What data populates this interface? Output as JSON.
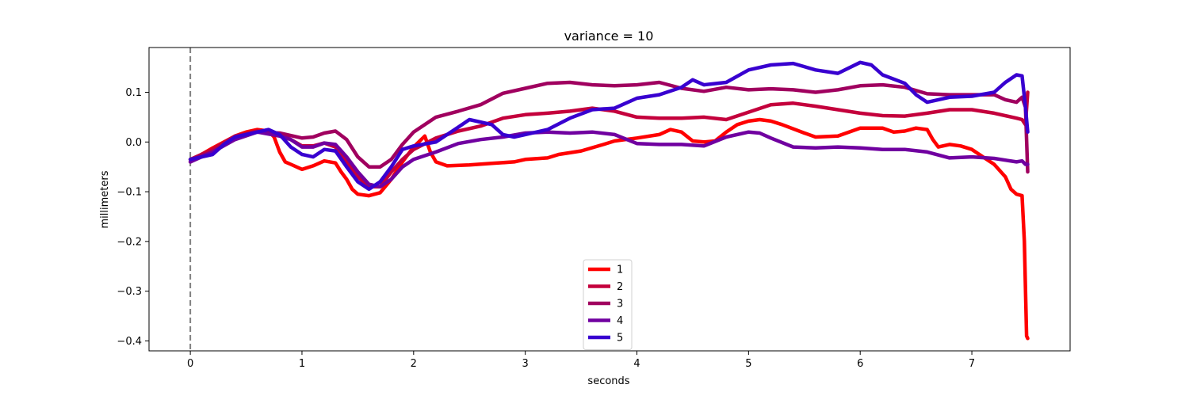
{
  "chart_data": {
    "type": "line",
    "title": "variance = 10",
    "xlabel": "seconds",
    "ylabel": "millimeters",
    "xlim": [
      -0.37,
      7.88
    ],
    "ylim": [
      -0.42,
      0.19
    ],
    "xticks": [
      0,
      1,
      2,
      3,
      4,
      5,
      6,
      7
    ],
    "xtick_labels": [
      "0",
      "1",
      "2",
      "3",
      "4",
      "5",
      "6",
      "7"
    ],
    "yticks": [
      -0.4,
      -0.3,
      -0.2,
      -0.1,
      0.0,
      0.1
    ],
    "ytick_labels": [
      "−0.4",
      "−0.3",
      "−0.2",
      "−0.1",
      "0.0",
      "0.1"
    ],
    "vline": {
      "x": 0,
      "color": "#808080",
      "style": "dashed"
    },
    "grid": false,
    "legend_position": "lower center",
    "series": [
      {
        "name": "1",
        "color": "#ff0000",
        "points": [
          [
            0,
            -0.04
          ],
          [
            0.1,
            -0.025
          ],
          [
            0.2,
            -0.012
          ],
          [
            0.3,
            0.0
          ],
          [
            0.4,
            0.012
          ],
          [
            0.5,
            0.02
          ],
          [
            0.6,
            0.025
          ],
          [
            0.7,
            0.022
          ],
          [
            0.75,
            0.01
          ],
          [
            0.8,
            -0.02
          ],
          [
            0.85,
            -0.04
          ],
          [
            0.9,
            -0.045
          ],
          [
            1.0,
            -0.055
          ],
          [
            1.1,
            -0.048
          ],
          [
            1.2,
            -0.038
          ],
          [
            1.3,
            -0.042
          ],
          [
            1.35,
            -0.06
          ],
          [
            1.4,
            -0.075
          ],
          [
            1.45,
            -0.095
          ],
          [
            1.5,
            -0.105
          ],
          [
            1.6,
            -0.108
          ],
          [
            1.7,
            -0.102
          ],
          [
            1.8,
            -0.075
          ],
          [
            1.9,
            -0.04
          ],
          [
            2.0,
            -0.01
          ],
          [
            2.1,
            0.012
          ],
          [
            2.15,
            -0.02
          ],
          [
            2.2,
            -0.04
          ],
          [
            2.3,
            -0.048
          ],
          [
            2.5,
            -0.046
          ],
          [
            2.7,
            -0.043
          ],
          [
            2.9,
            -0.04
          ],
          [
            3.0,
            -0.035
          ],
          [
            3.2,
            -0.032
          ],
          [
            3.3,
            -0.025
          ],
          [
            3.5,
            -0.018
          ],
          [
            3.7,
            -0.005
          ],
          [
            3.8,
            0.002
          ],
          [
            4.0,
            0.008
          ],
          [
            4.2,
            0.015
          ],
          [
            4.3,
            0.025
          ],
          [
            4.4,
            0.02
          ],
          [
            4.5,
            0.002
          ],
          [
            4.6,
            0.0
          ],
          [
            4.7,
            0.002
          ],
          [
            4.8,
            0.02
          ],
          [
            4.9,
            0.035
          ],
          [
            5.0,
            0.042
          ],
          [
            5.1,
            0.045
          ],
          [
            5.2,
            0.042
          ],
          [
            5.3,
            0.035
          ],
          [
            5.5,
            0.018
          ],
          [
            5.6,
            0.01
          ],
          [
            5.8,
            0.012
          ],
          [
            5.9,
            0.02
          ],
          [
            6.0,
            0.028
          ],
          [
            6.2,
            0.028
          ],
          [
            6.3,
            0.02
          ],
          [
            6.4,
            0.022
          ],
          [
            6.5,
            0.028
          ],
          [
            6.6,
            0.025
          ],
          [
            6.65,
            0.005
          ],
          [
            6.7,
            -0.01
          ],
          [
            6.8,
            -0.005
          ],
          [
            6.9,
            -0.008
          ],
          [
            7.0,
            -0.015
          ],
          [
            7.1,
            -0.03
          ],
          [
            7.2,
            -0.045
          ],
          [
            7.3,
            -0.07
          ],
          [
            7.35,
            -0.095
          ],
          [
            7.4,
            -0.105
          ],
          [
            7.45,
            -0.108
          ],
          [
            7.47,
            -0.2
          ],
          [
            7.49,
            -0.39
          ],
          [
            7.5,
            -0.395
          ]
        ]
      },
      {
        "name": "2",
        "color": "#c4003c",
        "points": [
          [
            0,
            -0.035
          ],
          [
            0.2,
            -0.015
          ],
          [
            0.4,
            0.012
          ],
          [
            0.6,
            0.022
          ],
          [
            0.8,
            0.015
          ],
          [
            0.9,
            0.005
          ],
          [
            1.0,
            -0.008
          ],
          [
            1.1,
            -0.008
          ],
          [
            1.2,
            -0.002
          ],
          [
            1.3,
            -0.01
          ],
          [
            1.4,
            -0.04
          ],
          [
            1.5,
            -0.07
          ],
          [
            1.6,
            -0.09
          ],
          [
            1.7,
            -0.09
          ],
          [
            1.8,
            -0.06
          ],
          [
            1.9,
            -0.035
          ],
          [
            2.0,
            -0.015
          ],
          [
            2.2,
            0.008
          ],
          [
            2.4,
            0.022
          ],
          [
            2.6,
            0.032
          ],
          [
            2.8,
            0.048
          ],
          [
            3.0,
            0.055
          ],
          [
            3.2,
            0.058
          ],
          [
            3.4,
            0.062
          ],
          [
            3.6,
            0.068
          ],
          [
            3.8,
            0.062
          ],
          [
            4.0,
            0.05
          ],
          [
            4.2,
            0.048
          ],
          [
            4.4,
            0.048
          ],
          [
            4.6,
            0.05
          ],
          [
            4.8,
            0.045
          ],
          [
            5.0,
            0.06
          ],
          [
            5.2,
            0.075
          ],
          [
            5.4,
            0.078
          ],
          [
            5.6,
            0.072
          ],
          [
            5.8,
            0.065
          ],
          [
            6.0,
            0.058
          ],
          [
            6.2,
            0.053
          ],
          [
            6.4,
            0.052
          ],
          [
            6.6,
            0.058
          ],
          [
            6.8,
            0.065
          ],
          [
            7.0,
            0.065
          ],
          [
            7.2,
            0.058
          ],
          [
            7.4,
            0.048
          ],
          [
            7.45,
            0.045
          ],
          [
            7.48,
            0.035
          ],
          [
            7.5,
            0.1
          ]
        ]
      },
      {
        "name": "3",
        "color": "#a0005f",
        "points": [
          [
            0,
            -0.035
          ],
          [
            0.2,
            -0.02
          ],
          [
            0.4,
            0.008
          ],
          [
            0.6,
            0.02
          ],
          [
            0.8,
            0.018
          ],
          [
            1.0,
            0.008
          ],
          [
            1.1,
            0.01
          ],
          [
            1.2,
            0.018
          ],
          [
            1.3,
            0.022
          ],
          [
            1.4,
            0.005
          ],
          [
            1.5,
            -0.03
          ],
          [
            1.6,
            -0.05
          ],
          [
            1.7,
            -0.05
          ],
          [
            1.8,
            -0.035
          ],
          [
            1.9,
            -0.005
          ],
          [
            2.0,
            0.02
          ],
          [
            2.2,
            0.05
          ],
          [
            2.4,
            0.062
          ],
          [
            2.6,
            0.075
          ],
          [
            2.8,
            0.098
          ],
          [
            3.0,
            0.108
          ],
          [
            3.2,
            0.118
          ],
          [
            3.4,
            0.12
          ],
          [
            3.6,
            0.115
          ],
          [
            3.8,
            0.113
          ],
          [
            4.0,
            0.115
          ],
          [
            4.2,
            0.12
          ],
          [
            4.4,
            0.108
          ],
          [
            4.6,
            0.102
          ],
          [
            4.8,
            0.11
          ],
          [
            5.0,
            0.105
          ],
          [
            5.2,
            0.107
          ],
          [
            5.4,
            0.105
          ],
          [
            5.6,
            0.1
          ],
          [
            5.8,
            0.105
          ],
          [
            6.0,
            0.113
          ],
          [
            6.2,
            0.115
          ],
          [
            6.4,
            0.11
          ],
          [
            6.6,
            0.097
          ],
          [
            6.8,
            0.095
          ],
          [
            7.0,
            0.095
          ],
          [
            7.2,
            0.095
          ],
          [
            7.3,
            0.085
          ],
          [
            7.4,
            0.08
          ],
          [
            7.45,
            0.09
          ],
          [
            7.48,
            0.07
          ],
          [
            7.5,
            -0.06
          ]
        ]
      },
      {
        "name": "4",
        "color": "#7000a0",
        "points": [
          [
            0,
            -0.04
          ],
          [
            0.2,
            -0.02
          ],
          [
            0.4,
            0.005
          ],
          [
            0.6,
            0.02
          ],
          [
            0.8,
            0.012
          ],
          [
            0.9,
            0.005
          ],
          [
            1.0,
            -0.01
          ],
          [
            1.1,
            -0.01
          ],
          [
            1.2,
            -0.002
          ],
          [
            1.3,
            -0.005
          ],
          [
            1.4,
            -0.03
          ],
          [
            1.5,
            -0.06
          ],
          [
            1.6,
            -0.085
          ],
          [
            1.7,
            -0.09
          ],
          [
            1.8,
            -0.075
          ],
          [
            1.9,
            -0.05
          ],
          [
            2.0,
            -0.035
          ],
          [
            2.2,
            -0.02
          ],
          [
            2.4,
            -0.003
          ],
          [
            2.6,
            0.005
          ],
          [
            2.8,
            0.01
          ],
          [
            3.0,
            0.018
          ],
          [
            3.2,
            0.02
          ],
          [
            3.4,
            0.018
          ],
          [
            3.6,
            0.02
          ],
          [
            3.8,
            0.015
          ],
          [
            4.0,
            -0.003
          ],
          [
            4.2,
            -0.005
          ],
          [
            4.4,
            -0.005
          ],
          [
            4.6,
            -0.008
          ],
          [
            4.8,
            0.01
          ],
          [
            5.0,
            0.02
          ],
          [
            5.1,
            0.018
          ],
          [
            5.2,
            0.008
          ],
          [
            5.4,
            -0.01
          ],
          [
            5.6,
            -0.012
          ],
          [
            5.8,
            -0.01
          ],
          [
            6.0,
            -0.012
          ],
          [
            6.2,
            -0.015
          ],
          [
            6.4,
            -0.015
          ],
          [
            6.6,
            -0.02
          ],
          [
            6.8,
            -0.032
          ],
          [
            7.0,
            -0.03
          ],
          [
            7.2,
            -0.033
          ],
          [
            7.4,
            -0.04
          ],
          [
            7.45,
            -0.038
          ],
          [
            7.48,
            -0.045
          ],
          [
            7.5,
            -0.045
          ]
        ]
      },
      {
        "name": "5",
        "color": "#3800d0",
        "points": [
          [
            0,
            -0.035
          ],
          [
            0.2,
            -0.025
          ],
          [
            0.3,
            -0.005
          ],
          [
            0.4,
            0.01
          ],
          [
            0.6,
            0.02
          ],
          [
            0.7,
            0.025
          ],
          [
            0.8,
            0.015
          ],
          [
            0.9,
            -0.01
          ],
          [
            1.0,
            -0.025
          ],
          [
            1.1,
            -0.03
          ],
          [
            1.2,
            -0.015
          ],
          [
            1.3,
            -0.018
          ],
          [
            1.4,
            -0.05
          ],
          [
            1.5,
            -0.08
          ],
          [
            1.6,
            -0.095
          ],
          [
            1.7,
            -0.08
          ],
          [
            1.8,
            -0.05
          ],
          [
            1.9,
            -0.015
          ],
          [
            2.0,
            -0.008
          ],
          [
            2.2,
            0.0
          ],
          [
            2.4,
            0.03
          ],
          [
            2.5,
            0.045
          ],
          [
            2.7,
            0.035
          ],
          [
            2.8,
            0.015
          ],
          [
            2.9,
            0.01
          ],
          [
            3.0,
            0.015
          ],
          [
            3.2,
            0.025
          ],
          [
            3.4,
            0.048
          ],
          [
            3.6,
            0.065
          ],
          [
            3.8,
            0.068
          ],
          [
            4.0,
            0.088
          ],
          [
            4.2,
            0.095
          ],
          [
            4.4,
            0.11
          ],
          [
            4.5,
            0.125
          ],
          [
            4.6,
            0.115
          ],
          [
            4.8,
            0.12
          ],
          [
            5.0,
            0.145
          ],
          [
            5.2,
            0.155
          ],
          [
            5.4,
            0.158
          ],
          [
            5.6,
            0.145
          ],
          [
            5.8,
            0.138
          ],
          [
            6.0,
            0.16
          ],
          [
            6.1,
            0.155
          ],
          [
            6.2,
            0.135
          ],
          [
            6.4,
            0.118
          ],
          [
            6.5,
            0.095
          ],
          [
            6.6,
            0.08
          ],
          [
            6.8,
            0.09
          ],
          [
            7.0,
            0.092
          ],
          [
            7.2,
            0.1
          ],
          [
            7.3,
            0.12
          ],
          [
            7.4,
            0.135
          ],
          [
            7.45,
            0.133
          ],
          [
            7.48,
            0.07
          ],
          [
            7.5,
            0.02
          ]
        ]
      }
    ]
  }
}
